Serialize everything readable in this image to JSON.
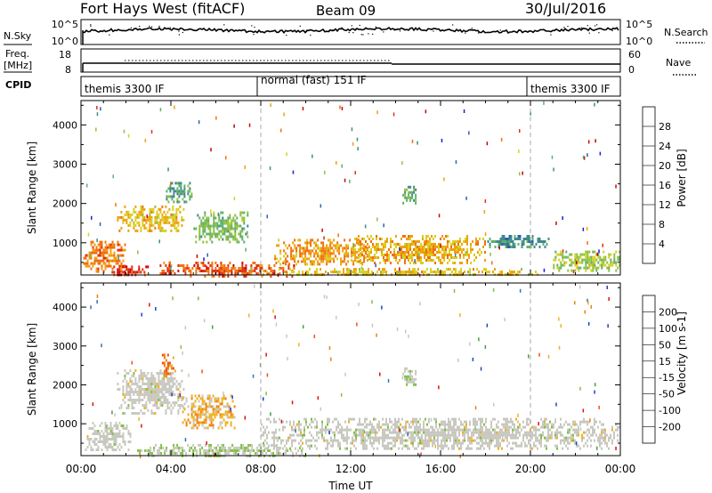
{
  "header": {
    "station": "Fort Hays West (fitACF)",
    "beam": "Beam 09",
    "date": "30/Jul/2016"
  },
  "sky_panel": {
    "left_label": "N.Sky",
    "left_ticks": [
      "10^5",
      "10^0"
    ],
    "right_label": "N.Search",
    "right_ticks": [
      "10^5",
      "10^0"
    ]
  },
  "freq_panel": {
    "left_label_1": "Freq.",
    "left_label_2": "[MHz]",
    "left_ticks": [
      "18",
      "8"
    ],
    "right_label": "Nave",
    "right_ticks": [
      "60",
      "0"
    ]
  },
  "cpid_panel": {
    "label": "CPID",
    "segments": [
      "themis 3300 IF",
      "normal (fast) 151 IF",
      "themis 3300 IF"
    ]
  },
  "chart_data": [
    {
      "type": "heatmap",
      "parameter": "Power",
      "ylabel": "Slant Range [km]",
      "xlabel": "Time UT",
      "x_ticks": [
        "00:00",
        "04:00",
        "08:00",
        "12:00",
        "16:00",
        "20:00",
        "00:00"
      ],
      "xlim_hours": [
        0,
        24
      ],
      "y_ticks": [
        1000,
        2000,
        3000,
        4000
      ],
      "ylim_km": [
        180,
        4620
      ],
      "mode_boundaries_hours": [
        8.0,
        20.0
      ],
      "colorbar": {
        "label": "Power [dB]",
        "ticks": [
          "4",
          "8",
          "12",
          "16",
          "20",
          "24",
          "28"
        ],
        "range": [
          0,
          30
        ],
        "colors": [
          "#1020e0",
          "#2f5fb0",
          "#3f8a8a",
          "#5fb06a",
          "#90c040",
          "#d8d020",
          "#f0a010",
          "#f07010",
          "#e03010",
          "#d00000"
        ]
      },
      "echo_regions": [
        {
          "t0": 0.1,
          "t1": 2.0,
          "r0": 300,
          "r1": 1050,
          "value": 22
        },
        {
          "t0": 1.2,
          "t1": 3.0,
          "r0": 180,
          "r1": 420,
          "value": 27
        },
        {
          "t0": 1.6,
          "t1": 4.6,
          "r0": 1300,
          "r1": 1950,
          "value": 18
        },
        {
          "t0": 3.7,
          "t1": 4.9,
          "r0": 2050,
          "r1": 2550,
          "value": 10
        },
        {
          "t0": 5.0,
          "t1": 7.4,
          "r0": 1050,
          "r1": 1800,
          "value": 12
        },
        {
          "t0": 3.5,
          "t1": 9.5,
          "r0": 180,
          "r1": 520,
          "value": 24
        },
        {
          "t0": 8.6,
          "t1": 12.8,
          "r0": 450,
          "r1": 1100,
          "value": 20
        },
        {
          "t0": 12.0,
          "t1": 18.0,
          "r0": 500,
          "r1": 1200,
          "value": 19
        },
        {
          "t0": 14.3,
          "t1": 14.9,
          "r0": 2000,
          "r1": 2450,
          "value": 11
        },
        {
          "t0": 8.0,
          "t1": 20.5,
          "r0": 180,
          "r1": 360,
          "value": 18
        },
        {
          "t0": 18.0,
          "t1": 20.8,
          "r0": 900,
          "r1": 1200,
          "value": 8
        },
        {
          "t0": 21.0,
          "t1": 24.0,
          "r0": 300,
          "r1": 800,
          "value": 14
        }
      ]
    },
    {
      "type": "heatmap",
      "parameter": "Velocity",
      "ylabel": "Slant Range [km]",
      "xlabel": "Time UT",
      "x_ticks": [
        "00:00",
        "04:00",
        "08:00",
        "12:00",
        "16:00",
        "20:00",
        "00:00"
      ],
      "xlim_hours": [
        0,
        24
      ],
      "y_ticks": [
        1000,
        2000,
        3000,
        4000
      ],
      "ylim_km": [
        180,
        4620
      ],
      "mode_boundaries_hours": [
        8.0,
        20.0
      ],
      "colorbar": {
        "label": "Velocity [m s-1]",
        "ticks": [
          "200",
          "100",
          "50",
          "15",
          "-15",
          "-50",
          "-100",
          "-200"
        ],
        "range": [
          -250,
          250
        ],
        "colors": [
          "#e01010",
          "#f05010",
          "#f08010",
          "#f0b020",
          "#c8c8c0",
          "#c8c8c0",
          "#80c040",
          "#40a040",
          "#3a6fb0",
          "#2040c0"
        ]
      },
      "echo_regions": [
        {
          "t0": 0.1,
          "t1": 2.2,
          "r0": 300,
          "r1": 1050,
          "value": 0
        },
        {
          "t0": 1.6,
          "t1": 4.6,
          "r0": 1300,
          "r1": 2400,
          "value": 0
        },
        {
          "t0": 3.6,
          "t1": 4.2,
          "r0": 2200,
          "r1": 2800,
          "value": -150
        },
        {
          "t0": 4.5,
          "t1": 6.8,
          "r0": 900,
          "r1": 1750,
          "value": -70
        },
        {
          "t0": 2.5,
          "t1": 10.0,
          "r0": 180,
          "r1": 480,
          "value": 40
        },
        {
          "t0": 8.0,
          "t1": 24.0,
          "r0": 350,
          "r1": 1150,
          "value": 0
        },
        {
          "t0": 14.3,
          "t1": 14.9,
          "r0": 2000,
          "r1": 2450,
          "value": 25
        }
      ]
    }
  ]
}
